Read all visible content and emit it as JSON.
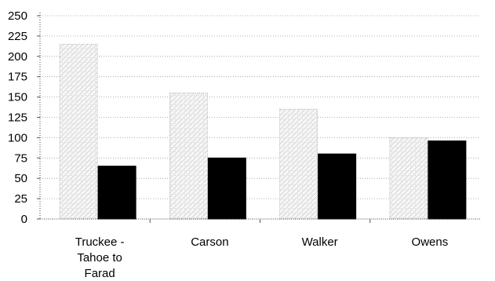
{
  "chart_data": {
    "type": "bar",
    "title": "",
    "xlabel": "",
    "ylabel": "",
    "categories": [
      [
        "Truckee -",
        "Tahoe to",
        "Farad"
      ],
      [
        "Carson"
      ],
      [
        "Walker"
      ],
      [
        "Owens"
      ]
    ],
    "series": [
      {
        "values": [
          215,
          155,
          135,
          100
        ],
        "color": "#f4f4f4",
        "pattern": "dotted-hatch"
      },
      {
        "values": [
          65,
          75,
          80,
          96
        ],
        "color": "#000000"
      }
    ],
    "ylim": [
      0,
      250
    ],
    "yticks": [
      0,
      25,
      50,
      75,
      100,
      125,
      150,
      175,
      200,
      225,
      250
    ],
    "grid": {
      "horizontal": true,
      "style": "dotted"
    },
    "legend": "none"
  }
}
